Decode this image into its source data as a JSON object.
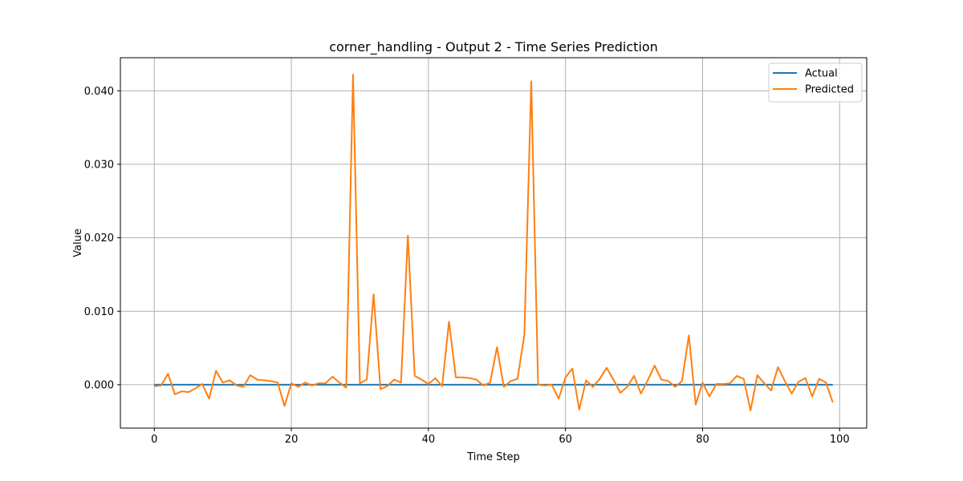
{
  "chart_data": {
    "type": "line",
    "title": "corner_handling - Output 2 - Time Series Prediction",
    "xlabel": "Time Step",
    "ylabel": "Value",
    "xlim": [
      -4.95,
      103.95
    ],
    "ylim": [
      -0.0059,
      0.0445
    ],
    "xticks": [
      0,
      20,
      40,
      60,
      80,
      100
    ],
    "xtick_labels": [
      "0",
      "20",
      "40",
      "60",
      "80",
      "100"
    ],
    "yticks": [
      0.0,
      0.01,
      0.02,
      0.03,
      0.04
    ],
    "ytick_labels": [
      "0.000",
      "0.010",
      "0.020",
      "0.030",
      "0.040"
    ],
    "grid": true,
    "legend_position": "top-right",
    "x": [
      0,
      1,
      2,
      3,
      4,
      5,
      6,
      7,
      8,
      9,
      10,
      11,
      12,
      13,
      14,
      15,
      16,
      17,
      18,
      19,
      20,
      21,
      22,
      23,
      24,
      25,
      26,
      27,
      28,
      29,
      30,
      31,
      32,
      33,
      34,
      35,
      36,
      37,
      38,
      39,
      40,
      41,
      42,
      43,
      44,
      45,
      46,
      47,
      48,
      49,
      50,
      51,
      52,
      53,
      54,
      55,
      56,
      57,
      58,
      59,
      60,
      61,
      62,
      63,
      64,
      65,
      66,
      67,
      68,
      69,
      70,
      71,
      72,
      73,
      74,
      75,
      76,
      77,
      78,
      79,
      80,
      81,
      82,
      83,
      84,
      85,
      86,
      87,
      88,
      89,
      90,
      91,
      92,
      93,
      94,
      95,
      96,
      97,
      98,
      99
    ],
    "series": [
      {
        "name": "Actual",
        "color": "#1f77b4",
        "values": [
          0,
          0,
          0,
          0,
          0,
          0,
          0,
          0,
          0,
          0,
          0,
          0,
          0,
          0,
          0,
          0,
          0,
          0,
          0,
          0,
          0,
          0,
          0,
          0,
          0,
          0,
          0,
          0,
          0,
          0,
          0,
          0,
          0,
          0,
          0,
          0,
          0,
          0,
          0,
          0,
          0,
          0,
          0,
          0,
          0,
          0,
          0,
          0,
          0,
          0,
          0,
          0,
          0,
          0,
          0,
          0,
          0,
          0,
          0,
          0,
          0,
          0,
          0,
          0,
          0,
          0,
          0,
          0,
          0,
          0,
          0,
          0,
          0,
          0,
          0,
          0,
          0,
          0,
          0,
          0,
          0,
          0,
          0,
          0,
          0,
          0,
          0,
          0,
          0,
          0,
          0,
          0,
          0,
          0,
          0,
          0,
          0,
          0,
          0,
          0
        ]
      },
      {
        "name": "Predicted",
        "color": "#ff7f0e",
        "values": [
          -0.0002,
          -0.0001,
          0.0015,
          -0.0013,
          -0.0009,
          -0.001,
          -0.0005,
          0.0001,
          -0.0019,
          0.0019,
          0.0003,
          0.0006,
          -0.0001,
          -0.0003,
          0.0013,
          0.0007,
          0.0006,
          0.0005,
          0.0003,
          -0.0029,
          0.0002,
          -0.0003,
          0.0003,
          -0.0001,
          0.0002,
          0.0002,
          0.0011,
          0.0003,
          -0.0004,
          0.0422,
          0.0002,
          0.0007,
          0.0123,
          -0.0006,
          -0.0002,
          0.0007,
          0.0003,
          0.0203,
          0.0012,
          0.0007,
          0.0001,
          0.0009,
          -0.0002,
          0.0086,
          0.001,
          0.001,
          0.0009,
          0.0007,
          -0.0001,
          0.0003,
          0.0051,
          -0.0003,
          0.0005,
          0.0008,
          0.0068,
          0.0413,
          0.0,
          -0.0001,
          0.0,
          -0.0019,
          0.001,
          0.0022,
          -0.0034,
          0.0006,
          -0.0003,
          0.0008,
          0.0023,
          0.0007,
          -0.0011,
          -0.0003,
          0.0012,
          -0.0012,
          0.0006,
          0.0026,
          0.0007,
          0.0005,
          -0.0003,
          0.0005,
          0.0067,
          -0.0027,
          0.0003,
          -0.0016,
          0.0001,
          0.0001,
          0.0002,
          0.0012,
          0.0008,
          -0.0035,
          0.0013,
          0.0002,
          -0.0008,
          0.0024,
          0.0005,
          -0.0012,
          0.0004,
          0.0009,
          -0.0016,
          0.0008,
          0.0003,
          -0.0024
        ]
      }
    ]
  }
}
